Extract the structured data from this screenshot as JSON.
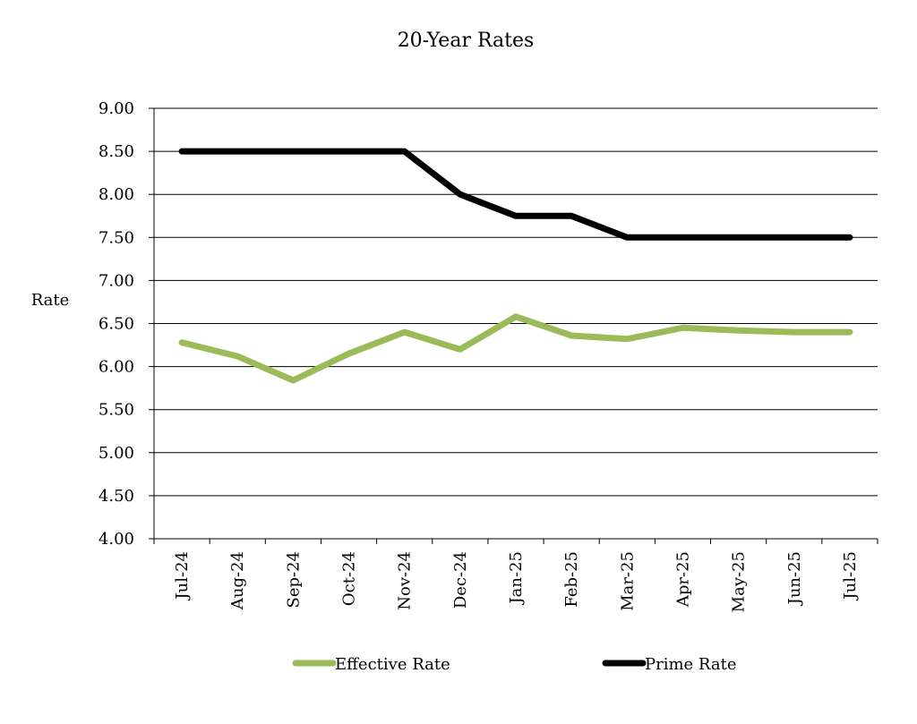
{
  "chart_data": {
    "type": "line",
    "title": "20-Year Rates",
    "xlabel": "",
    "ylabel": "Rate",
    "categories": [
      "Jul-24",
      "Aug-24",
      "Sep-24",
      "Oct-24",
      "Nov-24",
      "Dec-24",
      "Jan-25",
      "Feb-25",
      "Mar-25",
      "Apr-25",
      "May-25",
      "Jun-25",
      "Jul-25"
    ],
    "ylim": [
      4.0,
      9.0
    ],
    "yticks": [
      "4.00",
      "4.50",
      "5.00",
      "5.50",
      "6.00",
      "6.50",
      "7.00",
      "7.50",
      "8.00",
      "8.50",
      "9.00"
    ],
    "grid": true,
    "legend_position": "bottom",
    "series": [
      {
        "name": "Effective Rate",
        "color": "#9bbb59",
        "values": [
          6.28,
          6.12,
          5.84,
          6.15,
          6.4,
          6.2,
          6.58,
          6.36,
          6.32,
          6.45,
          6.42,
          6.4,
          6.4
        ]
      },
      {
        "name": "Prime Rate",
        "color": "#000000",
        "values": [
          8.5,
          8.5,
          8.5,
          8.5,
          8.5,
          8.0,
          7.75,
          7.75,
          7.5,
          7.5,
          7.5,
          7.5,
          7.5
        ]
      }
    ]
  }
}
